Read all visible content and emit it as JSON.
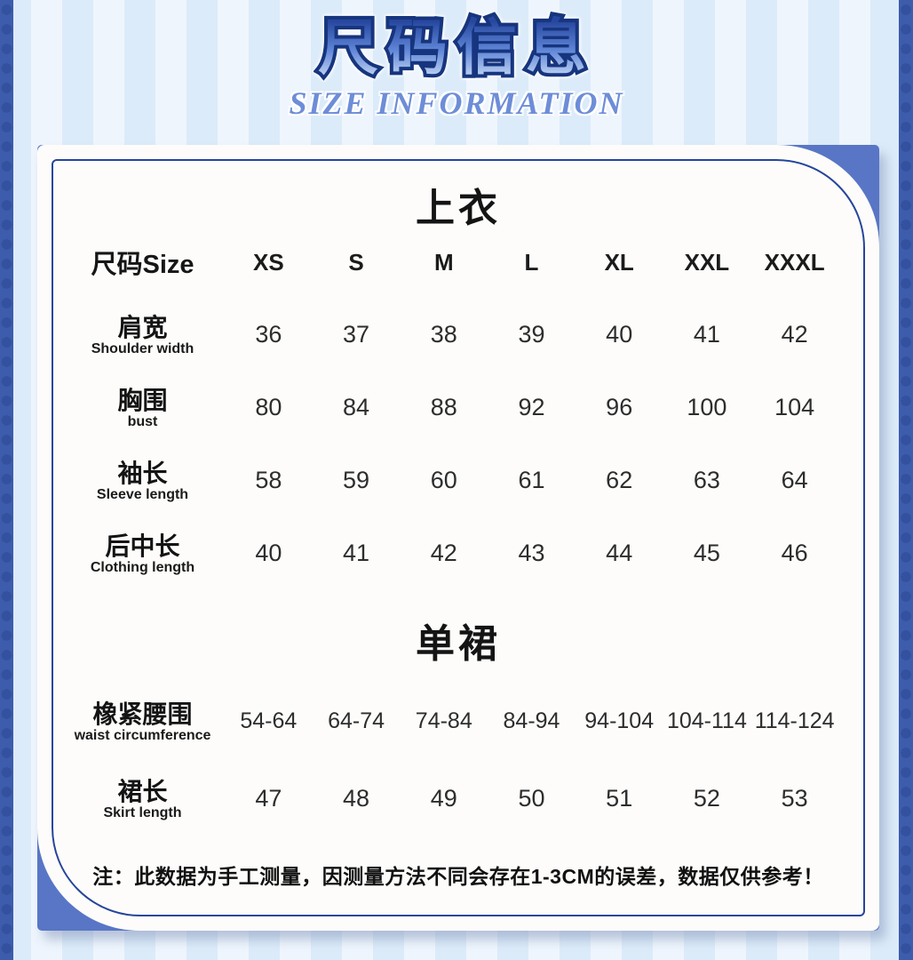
{
  "header": {
    "title_zh": "尺码信息",
    "title_en": "SIZE INFORMATION"
  },
  "tables": {
    "top": {
      "title": "上衣",
      "size_label": "尺码Size",
      "sizes": [
        "XS",
        "S",
        "M",
        "L",
        "XL",
        "XXL",
        "XXXL"
      ],
      "rows": [
        {
          "zh": "肩宽",
          "en": "Shoulder width",
          "values": [
            "36",
            "37",
            "38",
            "39",
            "40",
            "41",
            "42"
          ]
        },
        {
          "zh": "胸围",
          "en": "bust",
          "values": [
            "80",
            "84",
            "88",
            "92",
            "96",
            "100",
            "104"
          ]
        },
        {
          "zh": "袖长",
          "en": "Sleeve length",
          "values": [
            "58",
            "59",
            "60",
            "61",
            "62",
            "63",
            "64"
          ]
        },
        {
          "zh": "后中长",
          "en": "Clothing length",
          "values": [
            "40",
            "41",
            "42",
            "43",
            "44",
            "45",
            "46"
          ]
        }
      ]
    },
    "skirt": {
      "title": "单裙",
      "rows": [
        {
          "zh": "橡紧腰围",
          "en": "waist circumference",
          "values": [
            "54-64",
            "64-74",
            "74-84",
            "84-94",
            "94-104",
            "104-114",
            "114-124"
          ]
        },
        {
          "zh": "裙长",
          "en": "Skirt length",
          "values": [
            "47",
            "48",
            "49",
            "50",
            "51",
            "52",
            "53"
          ]
        }
      ]
    }
  },
  "note": "注：此数据为手工测量，因测量方法不同会存在1-3CM的误差，数据仅供参考！",
  "colors": {
    "corner_blue": "#5876c5",
    "inner_border_navy": "#26459a",
    "edge_strip_blue": "#3d5cab",
    "stripe_dark": "#dcebf9",
    "stripe_light": "#eef5fd",
    "title_fill_blue": "#3a60c0",
    "title_outline_navy": "#16357e",
    "subtitle_blue": "#6d8dd8",
    "card_background": "#fdfcfa"
  }
}
